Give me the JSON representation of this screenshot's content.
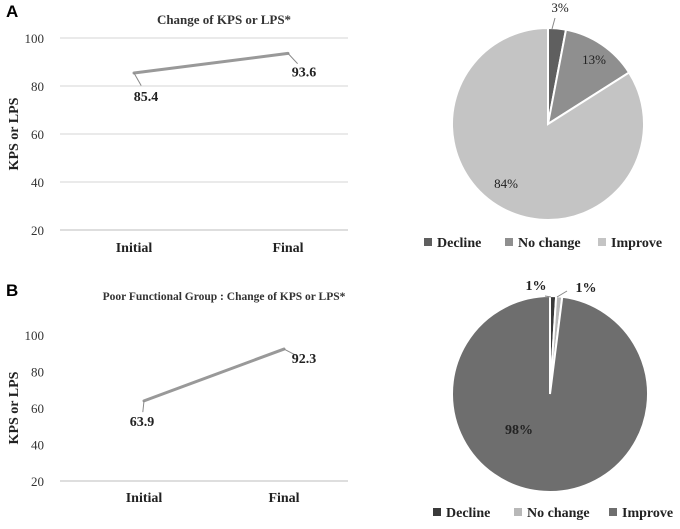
{
  "panels": [
    {
      "letter": "A"
    },
    {
      "letter": "B"
    }
  ],
  "chart_data": [
    {
      "type": "line",
      "panel": "A",
      "title": "Change of  KPS or LPS*",
      "xlabel": "",
      "ylabel": "KPS or LPS",
      "categories": [
        "Initial",
        "Final"
      ],
      "values": [
        85.4,
        93.6
      ],
      "data_labels": [
        "85.4",
        "93.6"
      ],
      "ylim": [
        20,
        100
      ],
      "yticks": [
        "20",
        "40",
        "60",
        "80",
        "100"
      ],
      "grid": true,
      "line_color": "#999999"
    },
    {
      "type": "pie",
      "panel": "A",
      "labels": [
        "Decline",
        "No change",
        "Improve"
      ],
      "values": [
        3,
        13,
        84
      ],
      "data_labels": [
        "3%",
        "13%",
        "84%"
      ],
      "colors": [
        "#5f5f5f",
        "#8f8f8f",
        "#c4c4c4"
      ],
      "legend": "bottom"
    },
    {
      "type": "line",
      "panel": "B",
      "title": "Poor Functional Group : Change of  KPS or LPS*",
      "xlabel": "",
      "ylabel": "KPS or LPS",
      "categories": [
        "Initial",
        "Final"
      ],
      "values": [
        63.9,
        92.3
      ],
      "data_labels": [
        "63.9",
        "92.3"
      ],
      "ylim": [
        20,
        100
      ],
      "yticks": [
        "20",
        "40",
        "60",
        "80",
        "100"
      ],
      "grid": false,
      "line_color": "#999999"
    },
    {
      "type": "pie",
      "panel": "B",
      "labels": [
        "Decline",
        "No change",
        "Improve"
      ],
      "values": [
        1,
        1,
        98
      ],
      "data_labels": [
        "1%",
        "1%",
        "98%"
      ],
      "colors": [
        "#3a3a3a",
        "#b8b8b8",
        "#6e6e6e"
      ],
      "legend": "bottom"
    }
  ]
}
